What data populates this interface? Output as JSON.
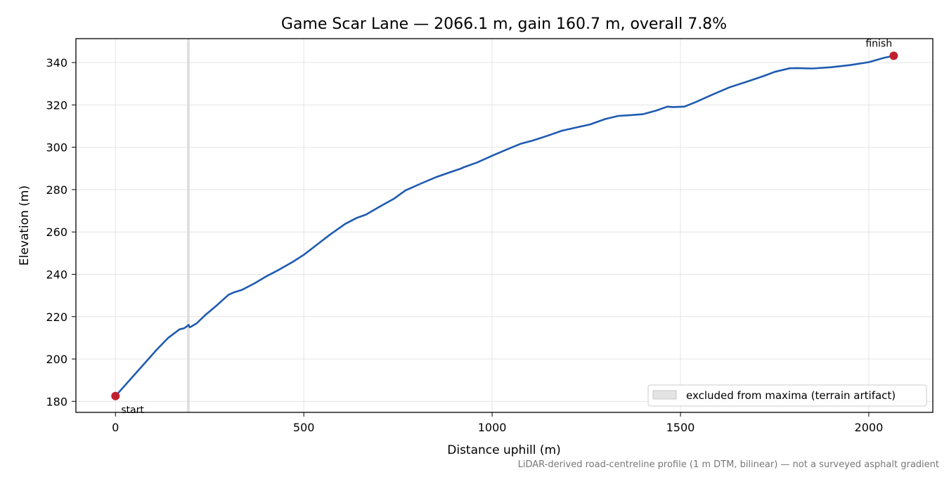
{
  "chart_data": {
    "type": "line",
    "title": "Game Scar Lane — 2066.1 m, gain 160.7 m, overall 7.8%",
    "xlabel": "Distance uphill (m)",
    "ylabel": "Elevation (m)",
    "xlim": [
      -105,
      2170
    ],
    "ylim": [
      174.8,
      351.3
    ],
    "xticks": [
      0,
      500,
      1000,
      1500,
      2000
    ],
    "yticks": [
      180,
      200,
      220,
      240,
      260,
      280,
      300,
      320,
      340
    ],
    "grid": true,
    "series": [
      {
        "color": "#1f5bb0",
        "x": [
          0,
          20,
          50,
          80,
          110,
          140,
          170,
          182,
          188,
          194,
          197,
          200,
          215,
          240,
          270,
          300,
          315,
          335,
          370,
          400,
          430,
          470,
          500,
          530,
          570,
          610,
          640,
          665,
          700,
          740,
          770,
          810,
          850,
          890,
          915,
          925,
          960,
          1000,
          1040,
          1075,
          1110,
          1150,
          1185,
          1220,
          1260,
          1300,
          1335,
          1370,
          1400,
          1435,
          1465,
          1480,
          1510,
          1540,
          1580,
          1630,
          1680,
          1720,
          1750,
          1790,
          1810,
          1850,
          1900,
          1950,
          2000,
          2040,
          2066.1
        ],
        "y": [
          182.5,
          186.5,
          192.5,
          198.5,
          204.5,
          210,
          214,
          214.5,
          215.2,
          216.1,
          215.0,
          215.2,
          216.8,
          221,
          225.5,
          230.3,
          231.5,
          232.6,
          235.8,
          239,
          241.8,
          245.8,
          249.2,
          253.3,
          258.8,
          263.8,
          266.6,
          268.2,
          271.8,
          275.8,
          279.6,
          282.8,
          285.8,
          288.3,
          289.8,
          290.6,
          292.8,
          296,
          299,
          301.6,
          303.3,
          305.6,
          307.8,
          309.2,
          310.8,
          313.3,
          314.8,
          315.2,
          315.6,
          317.3,
          319.2,
          319.0,
          319.2,
          321.3,
          324.5,
          328.3,
          331.2,
          333.6,
          335.6,
          337.3,
          337.4,
          337.2,
          337.8,
          338.8,
          340.2,
          342.2,
          343.2
        ]
      }
    ],
    "markers": [
      {
        "x": 0,
        "y": 182.5,
        "label": "start",
        "color": "#c0202e"
      },
      {
        "x": 2066.1,
        "y": 343.2,
        "label": "finish",
        "color": "#c0202e"
      }
    ],
    "excluded_band": {
      "x_start": 190,
      "x_end": 197,
      "color": "#d8d8d8"
    },
    "legend": {
      "position": "lower-right",
      "entries": [
        "excluded from maxima (terrain artifact)"
      ]
    },
    "footnote": "LiDAR-derived road-centreline profile (1 m DTM, bilinear) — not a surveyed asphalt gradient"
  }
}
